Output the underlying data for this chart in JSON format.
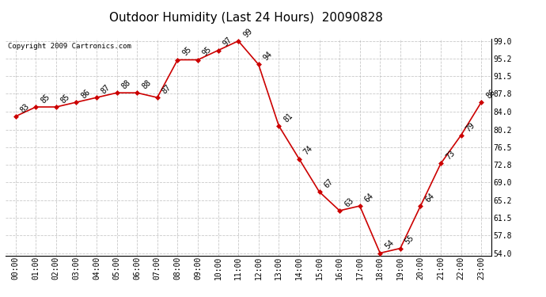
{
  "title": "Outdoor Humidity (Last 24 Hours)  20090828",
  "copyright": "Copyright 2009 Cartronics.com",
  "hours": [
    "00:00",
    "01:00",
    "02:00",
    "03:00",
    "04:00",
    "05:00",
    "06:00",
    "07:00",
    "08:00",
    "09:00",
    "10:00",
    "11:00",
    "12:00",
    "13:00",
    "14:00",
    "15:00",
    "16:00",
    "17:00",
    "18:00",
    "19:00",
    "20:00",
    "21:00",
    "22:00",
    "23:00"
  ],
  "values": [
    83,
    85,
    85,
    86,
    87,
    88,
    88,
    87,
    95,
    95,
    97,
    99,
    94,
    81,
    74,
    67,
    63,
    64,
    54,
    55,
    64,
    73,
    79,
    86
  ],
  "ylim_low": 53.5,
  "ylim_high": 99.5,
  "yticks": [
    54.0,
    57.8,
    61.5,
    65.2,
    69.0,
    72.8,
    76.5,
    80.2,
    84.0,
    87.8,
    91.5,
    95.2,
    99.0
  ],
  "line_color": "#cc0000",
  "marker_color": "#cc0000",
  "bg_color": "#ffffff",
  "grid_color": "#bbbbbb",
  "title_fontsize": 11,
  "tick_fontsize": 7,
  "annot_fontsize": 7,
  "copyright_fontsize": 6.5
}
